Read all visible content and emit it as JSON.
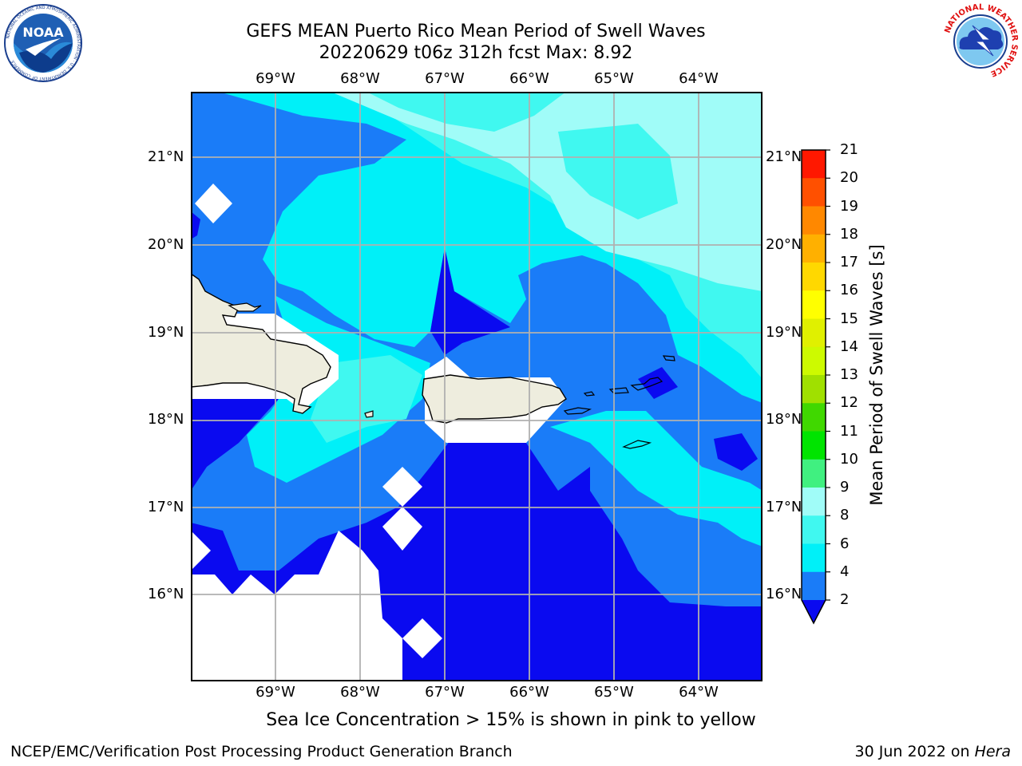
{
  "header": {
    "title_line1": "GEFS MEAN Puerto Rico Mean Period of Swell Waves",
    "title_line2": "20220629 t06z 312h fcst   Max: 8.92"
  },
  "logos": {
    "noaa_text": "NOAA",
    "noaa_ring": "NATIONAL OCEANIC AND ATMOSPHERIC ADMINISTRATION · U.S. DEPARTMENT OF COMMERCE",
    "nws_ring": "NATIONAL WEATHER SERVICE"
  },
  "map": {
    "lon_labels": [
      "69°W",
      "68°W",
      "67°W",
      "66°W",
      "65°W",
      "64°W"
    ],
    "lat_labels": [
      "21°N",
      "20°N",
      "19°N",
      "18°N",
      "17°N",
      "16°N"
    ],
    "land_color": "#eeedde",
    "no_data_color": "#ffffff"
  },
  "colorbar": {
    "label": "Mean Period of Swell Waves [s]",
    "ticks": [
      "2",
      "4",
      "6",
      "8",
      "9",
      "10",
      "11",
      "12",
      "13",
      "14",
      "15",
      "16",
      "17",
      "18",
      "19",
      "20",
      "21"
    ],
    "colors": [
      "#0a0af0",
      "#1a7cf8",
      "#00f0f8",
      "#40f8f0",
      "#a0fcf8",
      "#40f080",
      "#00e400",
      "#40d800",
      "#a0e000",
      "#cdfa00",
      "#e0f000",
      "#ffff00",
      "#ffd800",
      "#ffb000",
      "#ff8800",
      "#ff5000",
      "#ff1800",
      "#ff0000"
    ]
  },
  "footer": {
    "caption": "Sea Ice Concentration > 15% is shown in pink to yellow",
    "left": "NCEP/EMC/Verification Post Processing Product Generation Branch",
    "right_date": "30 Jun 2022 on ",
    "right_host": "Hera"
  }
}
